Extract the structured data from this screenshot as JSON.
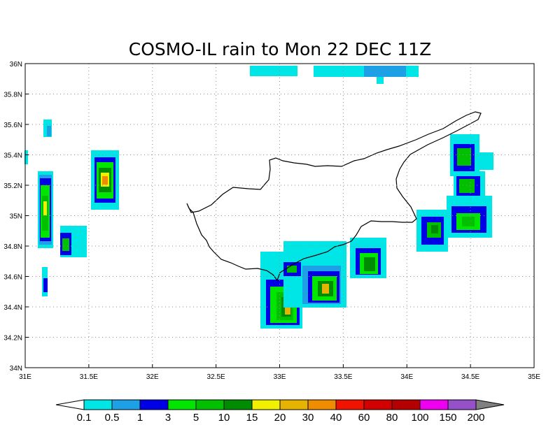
{
  "title": "COSMO-IL rain to Mon 22 DEC 11Z",
  "map": {
    "lon_range": [
      31,
      35
    ],
    "lat_range": [
      34,
      36
    ],
    "x_ticks": [
      "31E",
      "31.5E",
      "32E",
      "32.5E",
      "33E",
      "33.5E",
      "34E",
      "34.5E",
      "35E"
    ],
    "y_ticks": [
      "34N",
      "34.2N",
      "34.4N",
      "34.6N",
      "34.8N",
      "35N",
      "35.2N",
      "35.4N",
      "35.6N",
      "35.8N",
      "36N"
    ],
    "grid": "dotted"
  },
  "colorbar": {
    "labels": [
      "0.1",
      "0.5",
      "1",
      "3",
      "5",
      "10",
      "15",
      "20",
      "30",
      "40",
      "60",
      "80",
      "100",
      "150",
      "200"
    ],
    "colors": [
      "#00e6e6",
      "#1ea0e6",
      "#0000e6",
      "#00e600",
      "#00c000",
      "#008c00",
      "#f0f000",
      "#e6b400",
      "#f08c00",
      "#f01400",
      "#d20000",
      "#b40000",
      "#f000f0",
      "#9650c8"
    ],
    "under_color": "#ffffff",
    "over_color": "#808080"
  }
}
